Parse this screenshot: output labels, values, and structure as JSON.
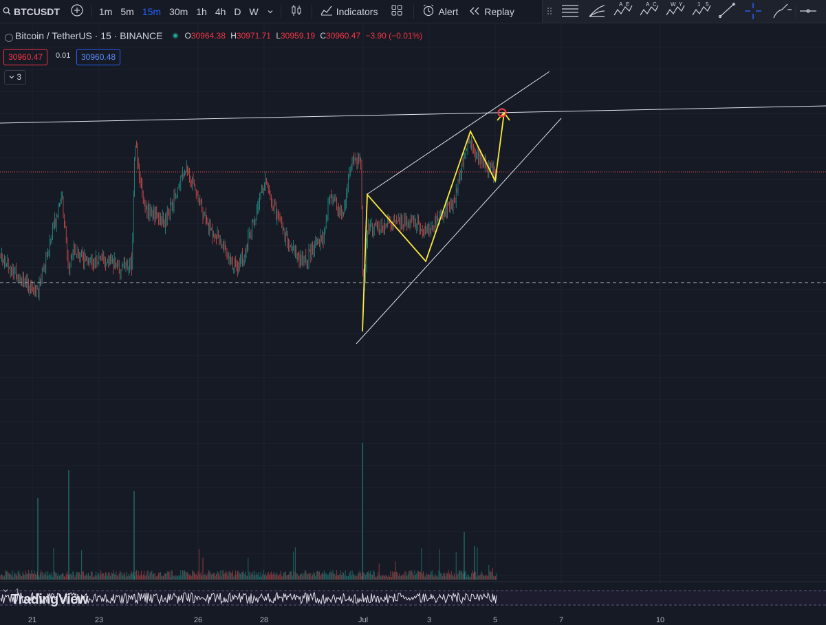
{
  "toolbar": {
    "symbol": "BTCUSDT",
    "intervals": [
      "1m",
      "5m",
      "15m",
      "30m",
      "1h",
      "4h",
      "D",
      "W"
    ],
    "active_interval": "15m",
    "indicators_label": "Indicators",
    "alert_label": "Alert",
    "replay_label": "Replay"
  },
  "legend": {
    "title": "Bitcoin / TetherUS · 15 · BINANCE",
    "o_label": "O",
    "o": "30964.38",
    "h_label": "H",
    "h": "30971.71",
    "l_label": "L",
    "l": "30959.19",
    "c_label": "C",
    "c": "30960.47",
    "change": "−3.90 (−0.01%)",
    "bid": "30960.47",
    "spread": "0.01",
    "ask": "30960.48",
    "collapsed_count": "3"
  },
  "dates": [
    "21",
    "23",
    "26",
    "28",
    "Jul",
    "3",
    "5",
    "7",
    "10"
  ],
  "pane": {
    "label": "1"
  },
  "logo": "TradingView",
  "colors": {
    "background": "#161a25",
    "up": "#26a69a",
    "down": "#ef5350",
    "drawing": "#ffffff",
    "pattern": "#ffeb3b",
    "target_marker": "#f23645",
    "accent": "#2962ff"
  },
  "icons": [
    "search-icon",
    "add-symbol-icon",
    "chevron-down-icon",
    "candles-icon",
    "indicators-icon",
    "templates-icon",
    "alert-icon",
    "replay-icon",
    "drag-handle-icon",
    "drawing-tool-icons"
  ]
}
